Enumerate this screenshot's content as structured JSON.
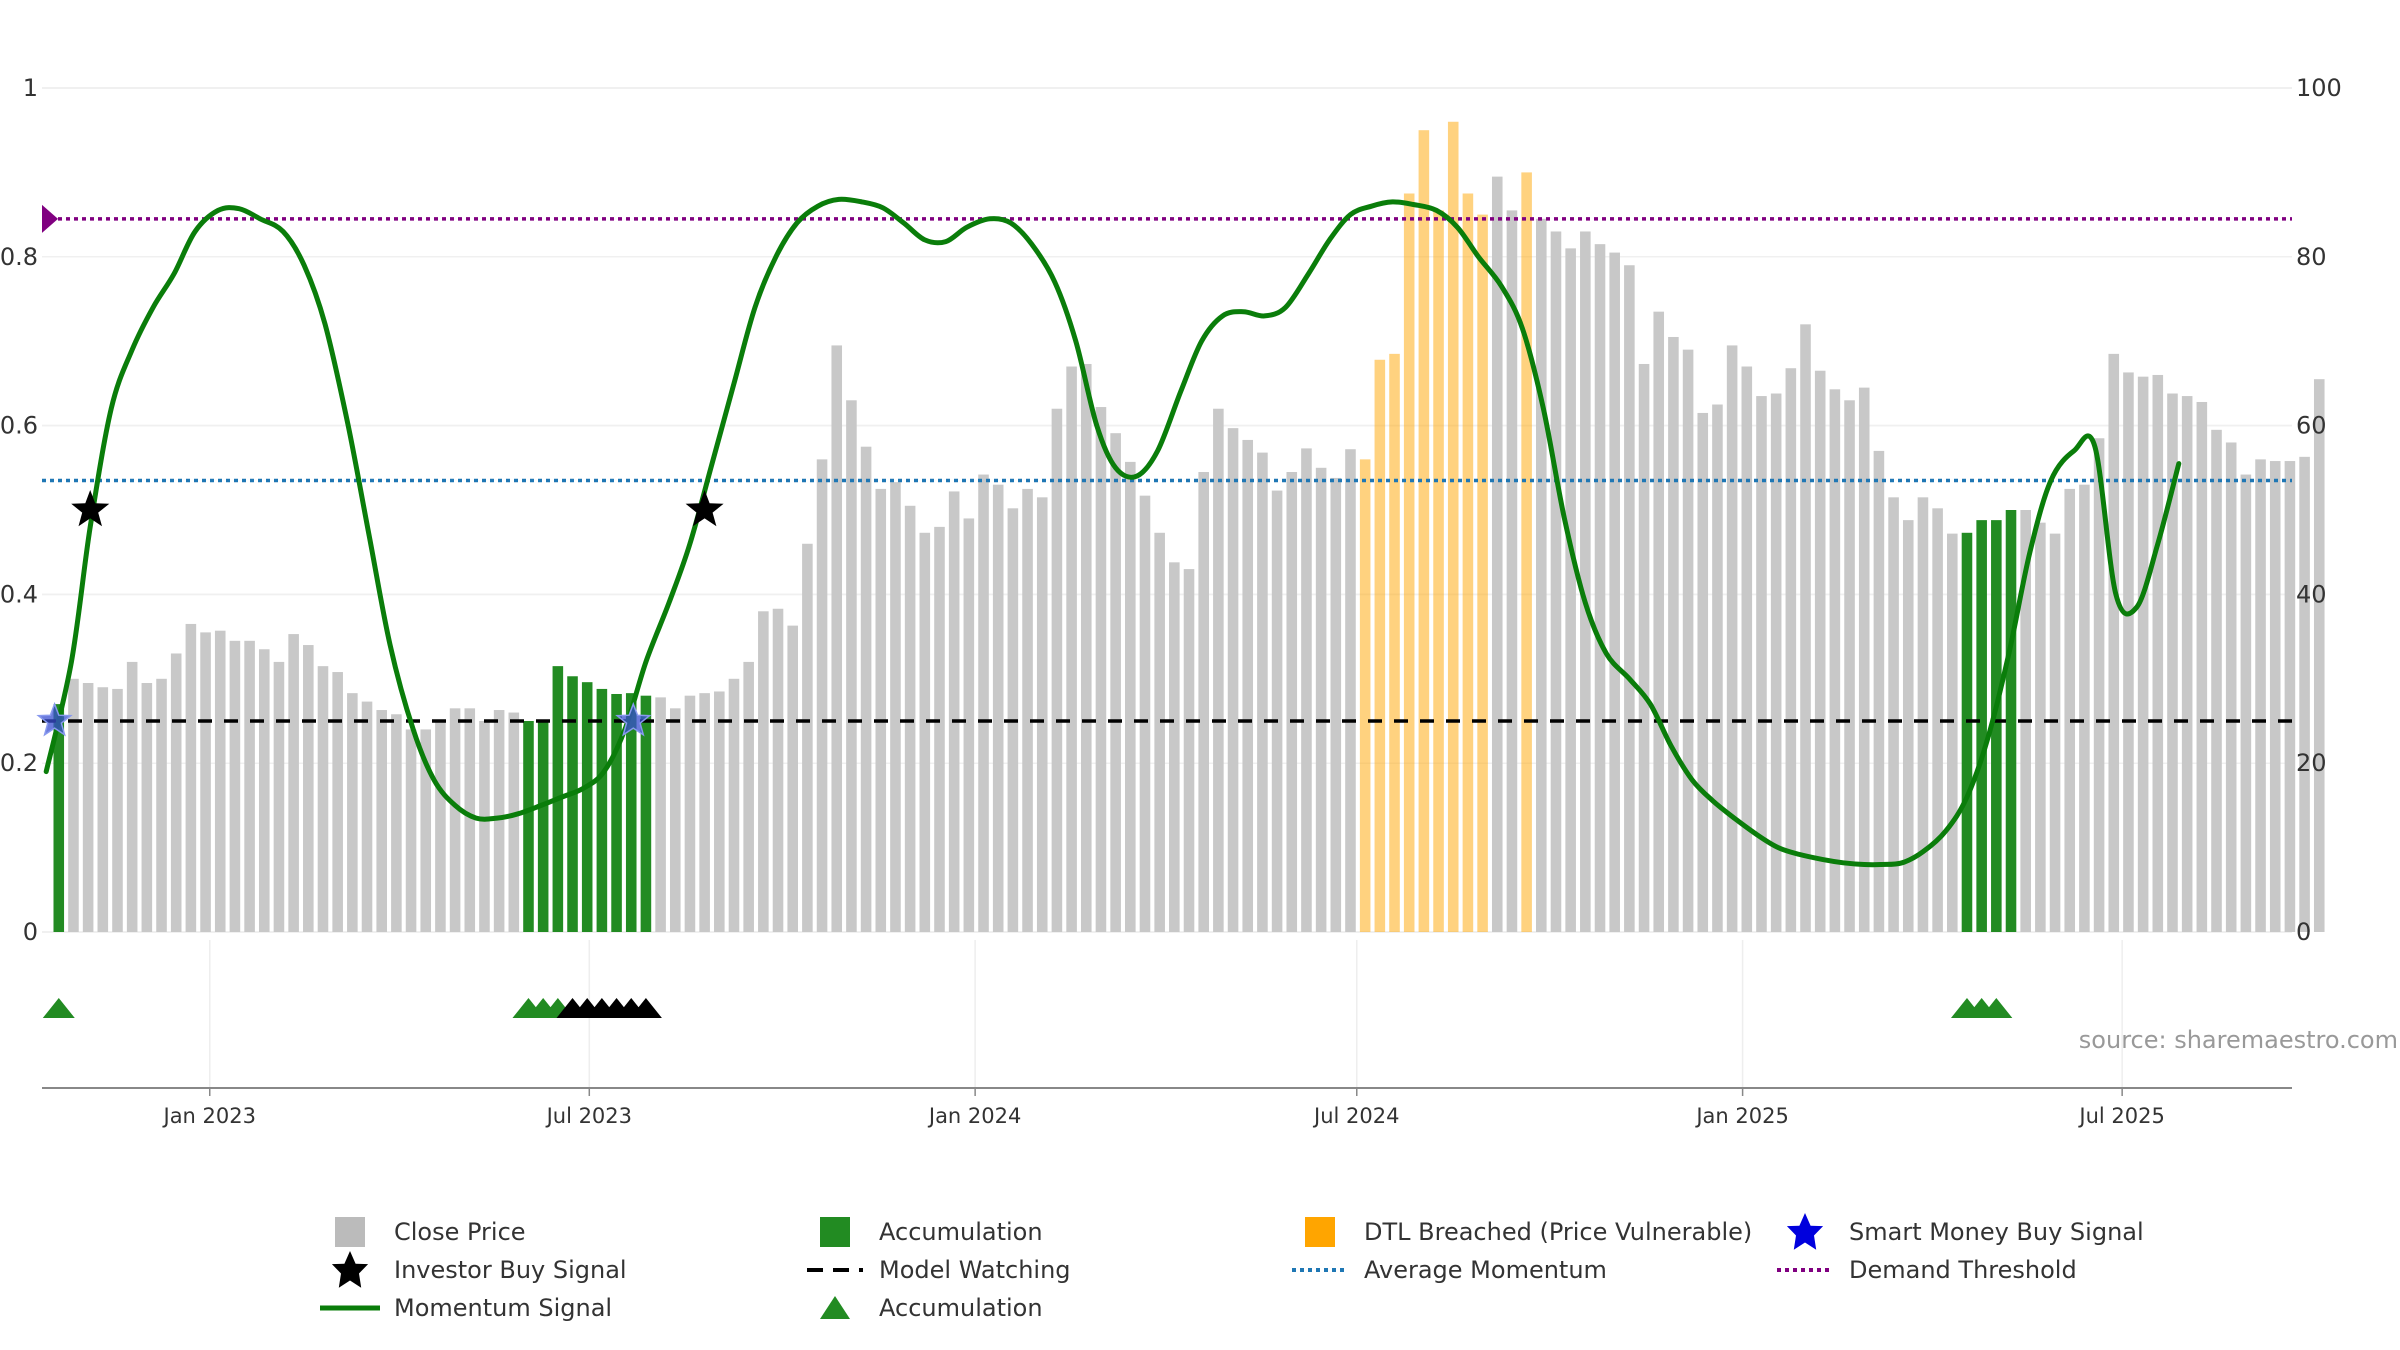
{
  "chart_data": {
    "type": "bar",
    "title": "",
    "xlabel": "",
    "ylabel_left": "",
    "ylabel_right": "",
    "y_left_range": [
      0,
      1
    ],
    "y_left_ticks": [
      "0",
      "0.2",
      "0.4",
      "0.6",
      "0.8",
      "1"
    ],
    "y_right_range": [
      0,
      100
    ],
    "y_right_ticks": [
      "0",
      "20",
      "40",
      "60",
      "80",
      "100"
    ],
    "x_range": [
      "2022-10-13",
      "2025-09-20"
    ],
    "x_ticks": [
      {
        "date": "2023-01-01",
        "label": "Jan 2023"
      },
      {
        "date": "2023-07-01",
        "label": "Jul 2023"
      },
      {
        "date": "2024-01-01",
        "label": "Jan 2024"
      },
      {
        "date": "2024-07-01",
        "label": "Jul 2024"
      },
      {
        "date": "2025-01-01",
        "label": "Jan 2025"
      },
      {
        "date": "2025-07-01",
        "label": "Jul 2025"
      }
    ],
    "grid": true,
    "legend_position": "bottom",
    "series": [
      {
        "name": "Close Price",
        "axis": "right",
        "kind": "bar",
        "start_date": "2022-10-21",
        "interval_days": 7,
        "values": [
          27,
          30,
          29.5,
          29,
          28.8,
          32,
          29.5,
          30,
          33,
          36.5,
          35.5,
          35.7,
          34.5,
          34.5,
          33.5,
          32,
          35.3,
          34,
          31.5,
          30.8,
          28.3,
          27.3,
          26.3,
          25.8,
          24,
          24,
          25,
          26.5,
          26.5,
          25,
          26.3,
          26,
          25,
          25,
          31.5,
          30.3,
          29.6,
          28.8,
          28.2,
          28.3,
          28,
          27.8,
          26.5,
          28,
          28.3,
          28.5,
          30,
          32,
          38,
          38.3,
          36.3,
          46,
          56,
          69.5,
          63,
          57.5,
          52.5,
          53.3,
          50.5,
          47.3,
          48,
          52.2,
          49,
          54.2,
          53,
          50.2,
          52.5,
          51.5,
          62,
          67,
          67.3,
          62.2,
          59.1,
          55.7,
          51.7,
          47.3,
          43.8,
          43,
          54.5,
          62,
          59.7,
          58.3,
          56.8,
          52.3,
          54.5,
          57.3,
          55,
          53.8,
          57.2,
          56,
          67.8,
          68.5,
          87.5,
          95,
          85.5,
          96,
          87.5,
          85,
          89.5,
          85.5,
          90,
          84.5,
          83,
          81,
          83,
          81.5,
          80.5,
          79,
          67.3,
          73.5,
          70.5,
          69,
          61.5,
          62.5,
          69.5,
          67,
          63.5,
          63.8,
          66.8,
          72,
          66.5,
          64.3,
          63,
          64.5,
          57,
          51.5,
          48.8,
          51.5,
          50.2,
          47.2,
          47.3,
          48.8,
          48.8,
          50,
          50,
          48.5,
          47.2,
          52.5,
          53,
          58.5,
          68.5,
          66.3,
          65.8,
          66,
          63.8,
          63.5,
          62.8,
          59.5,
          58,
          54.2,
          56,
          55.8,
          55.8,
          56.3,
          65.5
        ]
      },
      {
        "name": "Accumulation",
        "kind": "bar-highlight",
        "color": "#228b22",
        "ranges": [
          [
            "2022-10-21",
            "2022-10-21"
          ],
          [
            "2023-06-02",
            "2023-07-28"
          ],
          [
            "2025-04-18",
            "2025-05-09"
          ]
        ]
      },
      {
        "name": "DTL Breached (Price Vulnerable)",
        "kind": "bar-highlight",
        "color": "#ffa500",
        "ranges": [
          [
            "2024-07-05",
            "2024-08-30"
          ],
          [
            "2024-09-20",
            "2024-09-20"
          ]
        ]
      },
      {
        "name": "Momentum Signal",
        "axis": "left",
        "kind": "line",
        "color": "#0a7d0a",
        "points": [
          [
            "2022-10-15",
            0.19
          ],
          [
            "2022-10-27",
            0.32
          ],
          [
            "2022-11-05",
            0.48
          ],
          [
            "2022-11-15",
            0.62
          ],
          [
            "2022-11-25",
            0.69
          ],
          [
            "2022-12-05",
            0.74
          ],
          [
            "2022-12-15",
            0.78
          ],
          [
            "2022-12-25",
            0.83
          ],
          [
            "2023-01-05",
            0.855
          ],
          [
            "2023-01-15",
            0.857
          ],
          [
            "2023-01-25",
            0.845
          ],
          [
            "2023-02-05",
            0.83
          ],
          [
            "2023-02-15",
            0.79
          ],
          [
            "2023-02-25",
            0.72
          ],
          [
            "2023-03-08",
            0.6
          ],
          [
            "2023-03-18",
            0.47
          ],
          [
            "2023-03-28",
            0.34
          ],
          [
            "2023-04-08",
            0.24
          ],
          [
            "2023-04-18",
            0.18
          ],
          [
            "2023-04-28",
            0.15
          ],
          [
            "2023-05-08",
            0.135
          ],
          [
            "2023-05-18",
            0.135
          ],
          [
            "2023-05-28",
            0.14
          ],
          [
            "2023-06-08",
            0.15
          ],
          [
            "2023-06-18",
            0.16
          ],
          [
            "2023-06-28",
            0.17
          ],
          [
            "2023-07-08",
            0.19
          ],
          [
            "2023-07-18",
            0.24
          ],
          [
            "2023-07-28",
            0.32
          ],
          [
            "2023-08-08",
            0.39
          ],
          [
            "2023-08-18",
            0.46
          ],
          [
            "2023-08-28",
            0.55
          ],
          [
            "2023-09-08",
            0.65
          ],
          [
            "2023-09-18",
            0.74
          ],
          [
            "2023-09-28",
            0.8
          ],
          [
            "2023-10-08",
            0.84
          ],
          [
            "2023-10-18",
            0.86
          ],
          [
            "2023-10-28",
            0.868
          ],
          [
            "2023-11-08",
            0.865
          ],
          [
            "2023-11-18",
            0.858
          ],
          [
            "2023-11-28",
            0.84
          ],
          [
            "2023-12-08",
            0.82
          ],
          [
            "2023-12-18",
            0.818
          ],
          [
            "2023-12-28",
            0.835
          ],
          [
            "2024-01-08",
            0.845
          ],
          [
            "2024-01-18",
            0.84
          ],
          [
            "2024-01-28",
            0.815
          ],
          [
            "2024-02-08",
            0.77
          ],
          [
            "2024-02-18",
            0.7
          ],
          [
            "2024-02-28",
            0.6
          ],
          [
            "2024-03-08",
            0.55
          ],
          [
            "2024-03-18",
            0.54
          ],
          [
            "2024-03-28",
            0.57
          ],
          [
            "2024-04-08",
            0.64
          ],
          [
            "2024-04-18",
            0.7
          ],
          [
            "2024-04-28",
            0.73
          ],
          [
            "2024-05-08",
            0.735
          ],
          [
            "2024-05-18",
            0.73
          ],
          [
            "2024-05-28",
            0.74
          ],
          [
            "2024-06-08",
            0.78
          ],
          [
            "2024-06-18",
            0.82
          ],
          [
            "2024-06-28",
            0.85
          ],
          [
            "2024-07-08",
            0.86
          ],
          [
            "2024-07-18",
            0.865
          ],
          [
            "2024-07-28",
            0.862
          ],
          [
            "2024-08-08",
            0.855
          ],
          [
            "2024-08-18",
            0.835
          ],
          [
            "2024-08-28",
            0.8
          ],
          [
            "2024-09-08",
            0.765
          ],
          [
            "2024-09-18",
            0.715
          ],
          [
            "2024-09-28",
            0.62
          ],
          [
            "2024-10-08",
            0.49
          ],
          [
            "2024-10-18",
            0.39
          ],
          [
            "2024-10-28",
            0.33
          ],
          [
            "2024-11-08",
            0.3
          ],
          [
            "2024-11-18",
            0.27
          ],
          [
            "2024-11-28",
            0.22
          ],
          [
            "2024-12-08",
            0.18
          ],
          [
            "2024-12-18",
            0.155
          ],
          [
            "2024-12-28",
            0.135
          ],
          [
            "2025-01-08",
            0.115
          ],
          [
            "2025-01-18",
            0.1
          ],
          [
            "2025-01-28",
            0.092
          ],
          [
            "2025-02-08",
            0.086
          ],
          [
            "2025-02-18",
            0.082
          ],
          [
            "2025-02-28",
            0.08
          ],
          [
            "2025-03-08",
            0.08
          ],
          [
            "2025-03-18",
            0.082
          ],
          [
            "2025-03-28",
            0.095
          ],
          [
            "2025-04-08",
            0.12
          ],
          [
            "2025-04-18",
            0.16
          ],
          [
            "2025-04-28",
            0.23
          ],
          [
            "2025-05-08",
            0.33
          ],
          [
            "2025-05-18",
            0.45
          ],
          [
            "2025-05-28",
            0.535
          ],
          [
            "2025-06-08",
            0.57
          ],
          [
            "2025-06-18",
            0.575
          ],
          [
            "2025-06-28",
            0.4
          ],
          [
            "2025-07-08",
            0.385
          ],
          [
            "2025-07-18",
            0.46
          ],
          [
            "2025-07-28",
            0.555
          ]
        ]
      },
      {
        "name": "Model Watching",
        "axis": "left",
        "kind": "hline",
        "value": 0.25,
        "color": "#000000",
        "style": "dashed"
      },
      {
        "name": "Average Momentum",
        "axis": "left",
        "kind": "hline",
        "value": 0.535,
        "color": "#1f77b4",
        "style": "dotted"
      },
      {
        "name": "Demand Threshold",
        "axis": "left",
        "kind": "hline",
        "value": 0.845,
        "color": "#800080",
        "style": "dotted"
      },
      {
        "name": "Investor Buy Signal",
        "axis": "left",
        "kind": "marker",
        "marker": "star",
        "color": "#000000",
        "points": [
          [
            "2022-11-05",
            0.5
          ],
          [
            "2023-08-25",
            0.5
          ]
        ]
      },
      {
        "name": "Smart Money Buy Signal",
        "axis": "left",
        "kind": "marker",
        "marker": "star",
        "color": "#3a4fd0",
        "points": [
          [
            "2022-10-19",
            0.25
          ],
          [
            "2023-07-22",
            0.25
          ]
        ]
      },
      {
        "name": "Accumulation",
        "kind": "triangle-markers",
        "color": "#228b22",
        "dates": [
          "2022-10-21",
          "2023-06-02",
          "2023-06-09",
          "2023-06-16",
          "2025-04-18",
          "2025-04-25",
          "2025-05-02"
        ]
      },
      {
        "name": "",
        "kind": "triangle-markers",
        "color": "#000000",
        "dates": [
          "2023-06-23",
          "2023-06-30",
          "2023-07-07",
          "2023-07-14",
          "2023-07-21",
          "2023-07-28"
        ]
      }
    ],
    "annotations": [
      "source: sharemaestro.com"
    ]
  },
  "source_text": "source: sharemaestro.com",
  "legend": [
    {
      "key": "close",
      "label": "Close Price",
      "icon": "gray-square",
      "color": "#bbbbbb"
    },
    {
      "key": "investor",
      "label": "Investor Buy Signal",
      "icon": "star",
      "color": "#000000"
    },
    {
      "key": "momentum",
      "label": "Momentum Signal",
      "icon": "line",
      "color": "#0a7d0a"
    },
    {
      "key": "accum_bar",
      "label": "Accumulation",
      "icon": "green-square",
      "color": "#228b22"
    },
    {
      "key": "watching",
      "label": "Model Watching",
      "icon": "dashed-line",
      "color": "#000000"
    },
    {
      "key": "accum_tri",
      "label": "Accumulation",
      "icon": "triangle",
      "color": "#228b22"
    },
    {
      "key": "dtl",
      "label": "DTL Breached (Price Vulnerable)",
      "icon": "orange-square",
      "color": "#ffa500"
    },
    {
      "key": "avg",
      "label": "Average Momentum",
      "icon": "dotted-line",
      "color": "#1f77b4"
    },
    {
      "key": "smart",
      "label": "Smart Money Buy Signal",
      "icon": "star",
      "color": "#0000dd"
    },
    {
      "key": "demand",
      "label": "Demand Threshold",
      "icon": "dotted-line",
      "color": "#800080"
    }
  ]
}
